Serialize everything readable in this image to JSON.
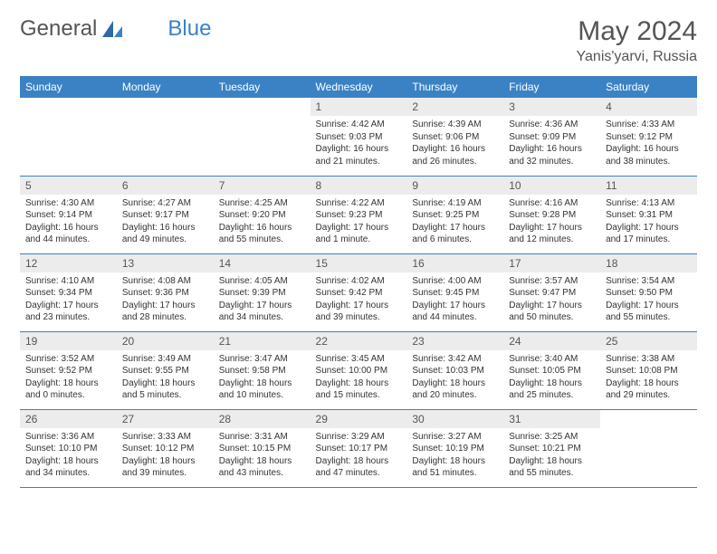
{
  "brand": {
    "part1": "General",
    "part2": "Blue"
  },
  "title": "May 2024",
  "location": "Yanis'yarvi, Russia",
  "colors": {
    "header_bg": "#3b82c4",
    "header_text": "#ffffff",
    "daynum_bg": "#ececec",
    "border": "#3b82c4",
    "text": "#333333",
    "muted": "#555555",
    "background": "#ffffff"
  },
  "weekdays": [
    "Sunday",
    "Monday",
    "Tuesday",
    "Wednesday",
    "Thursday",
    "Friday",
    "Saturday"
  ],
  "weeks": [
    [
      null,
      null,
      null,
      {
        "n": "1",
        "sr": "4:42 AM",
        "ss": "9:03 PM",
        "dl": "16 hours and 21 minutes."
      },
      {
        "n": "2",
        "sr": "4:39 AM",
        "ss": "9:06 PM",
        "dl": "16 hours and 26 minutes."
      },
      {
        "n": "3",
        "sr": "4:36 AM",
        "ss": "9:09 PM",
        "dl": "16 hours and 32 minutes."
      },
      {
        "n": "4",
        "sr": "4:33 AM",
        "ss": "9:12 PM",
        "dl": "16 hours and 38 minutes."
      }
    ],
    [
      {
        "n": "5",
        "sr": "4:30 AM",
        "ss": "9:14 PM",
        "dl": "16 hours and 44 minutes."
      },
      {
        "n": "6",
        "sr": "4:27 AM",
        "ss": "9:17 PM",
        "dl": "16 hours and 49 minutes."
      },
      {
        "n": "7",
        "sr": "4:25 AM",
        "ss": "9:20 PM",
        "dl": "16 hours and 55 minutes."
      },
      {
        "n": "8",
        "sr": "4:22 AM",
        "ss": "9:23 PM",
        "dl": "17 hours and 1 minute."
      },
      {
        "n": "9",
        "sr": "4:19 AM",
        "ss": "9:25 PM",
        "dl": "17 hours and 6 minutes."
      },
      {
        "n": "10",
        "sr": "4:16 AM",
        "ss": "9:28 PM",
        "dl": "17 hours and 12 minutes."
      },
      {
        "n": "11",
        "sr": "4:13 AM",
        "ss": "9:31 PM",
        "dl": "17 hours and 17 minutes."
      }
    ],
    [
      {
        "n": "12",
        "sr": "4:10 AM",
        "ss": "9:34 PM",
        "dl": "17 hours and 23 minutes."
      },
      {
        "n": "13",
        "sr": "4:08 AM",
        "ss": "9:36 PM",
        "dl": "17 hours and 28 minutes."
      },
      {
        "n": "14",
        "sr": "4:05 AM",
        "ss": "9:39 PM",
        "dl": "17 hours and 34 minutes."
      },
      {
        "n": "15",
        "sr": "4:02 AM",
        "ss": "9:42 PM",
        "dl": "17 hours and 39 minutes."
      },
      {
        "n": "16",
        "sr": "4:00 AM",
        "ss": "9:45 PM",
        "dl": "17 hours and 44 minutes."
      },
      {
        "n": "17",
        "sr": "3:57 AM",
        "ss": "9:47 PM",
        "dl": "17 hours and 50 minutes."
      },
      {
        "n": "18",
        "sr": "3:54 AM",
        "ss": "9:50 PM",
        "dl": "17 hours and 55 minutes."
      }
    ],
    [
      {
        "n": "19",
        "sr": "3:52 AM",
        "ss": "9:52 PM",
        "dl": "18 hours and 0 minutes."
      },
      {
        "n": "20",
        "sr": "3:49 AM",
        "ss": "9:55 PM",
        "dl": "18 hours and 5 minutes."
      },
      {
        "n": "21",
        "sr": "3:47 AM",
        "ss": "9:58 PM",
        "dl": "18 hours and 10 minutes."
      },
      {
        "n": "22",
        "sr": "3:45 AM",
        "ss": "10:00 PM",
        "dl": "18 hours and 15 minutes."
      },
      {
        "n": "23",
        "sr": "3:42 AM",
        "ss": "10:03 PM",
        "dl": "18 hours and 20 minutes."
      },
      {
        "n": "24",
        "sr": "3:40 AM",
        "ss": "10:05 PM",
        "dl": "18 hours and 25 minutes."
      },
      {
        "n": "25",
        "sr": "3:38 AM",
        "ss": "10:08 PM",
        "dl": "18 hours and 29 minutes."
      }
    ],
    [
      {
        "n": "26",
        "sr": "3:36 AM",
        "ss": "10:10 PM",
        "dl": "18 hours and 34 minutes."
      },
      {
        "n": "27",
        "sr": "3:33 AM",
        "ss": "10:12 PM",
        "dl": "18 hours and 39 minutes."
      },
      {
        "n": "28",
        "sr": "3:31 AM",
        "ss": "10:15 PM",
        "dl": "18 hours and 43 minutes."
      },
      {
        "n": "29",
        "sr": "3:29 AM",
        "ss": "10:17 PM",
        "dl": "18 hours and 47 minutes."
      },
      {
        "n": "30",
        "sr": "3:27 AM",
        "ss": "10:19 PM",
        "dl": "18 hours and 51 minutes."
      },
      {
        "n": "31",
        "sr": "3:25 AM",
        "ss": "10:21 PM",
        "dl": "18 hours and 55 minutes."
      },
      null
    ]
  ],
  "labels": {
    "sunrise": "Sunrise:",
    "sunset": "Sunset:",
    "daylight": "Daylight:"
  }
}
